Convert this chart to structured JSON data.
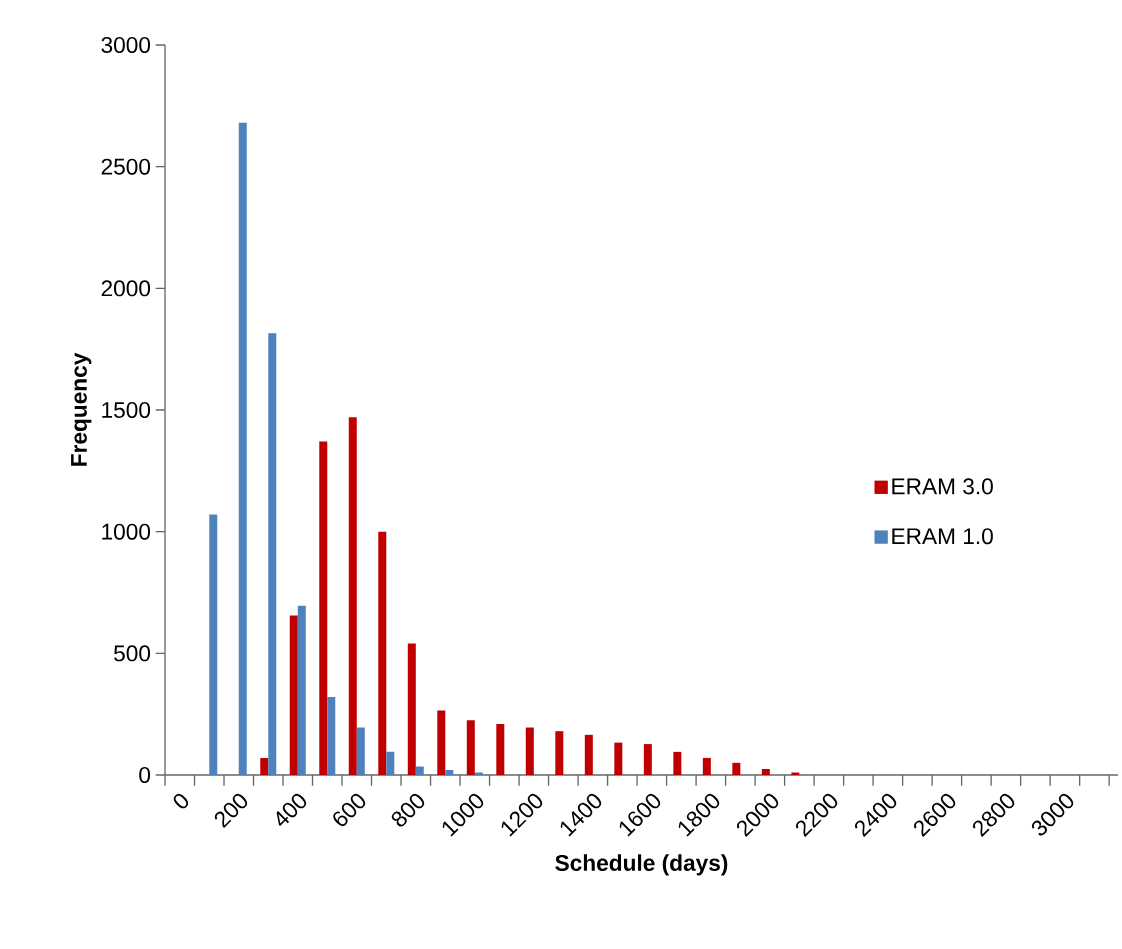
{
  "chart_data": {
    "type": "bar",
    "xlabel": "Schedule (days)",
    "ylabel": "Frequency",
    "categories": [
      "0",
      null,
      "200",
      null,
      "400",
      null,
      "600",
      null,
      "800",
      null,
      "1000",
      null,
      "1200",
      null,
      "1400",
      null,
      "1600",
      null,
      "1800",
      null,
      "2000",
      null,
      "2200",
      null,
      "2400",
      null,
      "2600",
      null,
      "2800",
      null,
      "3000",
      null
    ],
    "series": [
      {
        "name": "ERAM 3.0",
        "color": "#c00000",
        "values": [
          null,
          null,
          null,
          70,
          655,
          1370,
          1470,
          1000,
          540,
          265,
          225,
          210,
          195,
          180,
          165,
          133,
          127,
          95,
          70,
          50,
          25,
          10,
          null,
          null,
          null,
          null,
          null,
          null,
          null,
          null,
          null,
          null
        ]
      },
      {
        "name": "ERAM 1.0",
        "color": "#4f81bd",
        "values": [
          null,
          1070,
          2680,
          1815,
          695,
          320,
          195,
          95,
          35,
          20,
          10,
          null,
          null,
          null,
          null,
          null,
          null,
          null,
          null,
          null,
          null,
          null,
          null,
          null,
          null,
          null,
          null,
          null,
          null,
          null,
          null,
          null
        ]
      }
    ],
    "ylim": [
      0,
      3000
    ],
    "yticks": [
      0,
      500,
      1000,
      1500,
      2000,
      2500,
      3000
    ],
    "grid": false,
    "legend": "right"
  }
}
